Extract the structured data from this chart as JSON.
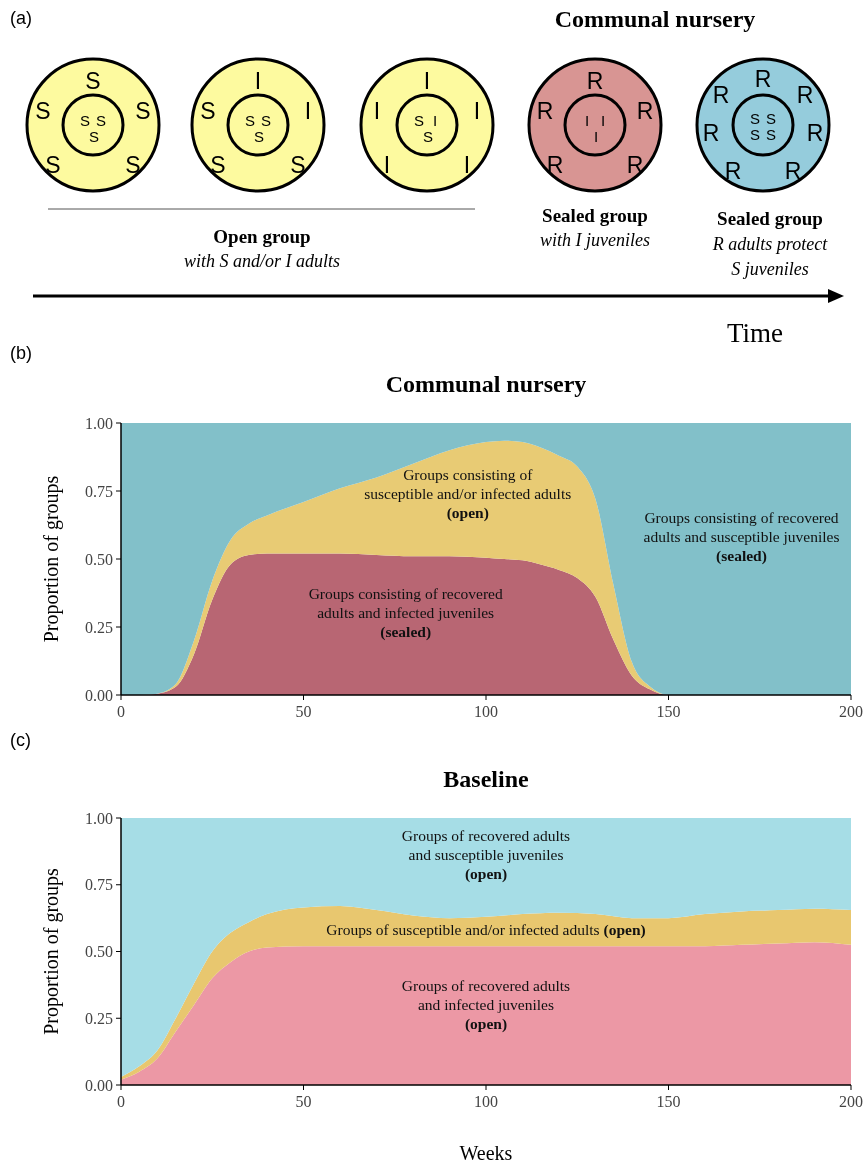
{
  "chart_data": [
    {
      "type": "other",
      "title": "Communal nursery",
      "colors": [
        "#fdfa9f",
        "#fdfa9f",
        "#fdfa9f",
        "#d89593",
        "#95ccdc"
      ],
      "annotations": [
        "(a)",
        "Open group",
        "with S and/or I adults",
        "Sealed group",
        "with I juveniles",
        "Sealed group",
        "R adults protect",
        "S juveniles",
        "Time",
        "S",
        "S",
        "S",
        "S",
        "S",
        "S",
        "S",
        "S",
        "I",
        "S",
        "I",
        "S",
        "S",
        "S",
        "S",
        "S",
        "I",
        "I",
        "I",
        "I",
        "I",
        "S",
        "I",
        "S",
        "R",
        "R",
        "R",
        "R",
        "R",
        "I",
        "I",
        "I",
        "R",
        "R",
        "R",
        "R",
        "R",
        "R",
        "R",
        "S",
        "S",
        "S",
        "S"
      ]
    },
    {
      "type": "area",
      "stacked": true,
      "title": "Communal nursery",
      "ylabel": "Proportion of groups",
      "annotations": [
        "(b)"
      ],
      "x": [
        0,
        5,
        10,
        15,
        20,
        25,
        30,
        35,
        40,
        50,
        60,
        70,
        80,
        90,
        100,
        105,
        110,
        115,
        120,
        125,
        130,
        135,
        140,
        145,
        150,
        175,
        200
      ],
      "xlim": [
        0,
        200
      ],
      "xticks": [
        0,
        50,
        100,
        150,
        200
      ],
      "ylim": [
        0,
        1
      ],
      "yticks": [
        {
          "value": 0,
          "label": "0.00"
        },
        {
          "value": 0.25,
          "label": "0.25"
        },
        {
          "value": 0.5,
          "label": "0.50"
        },
        {
          "value": 0.75,
          "label": "0.75"
        },
        {
          "value": 1,
          "label": "1.00"
        }
      ],
      "legend": false,
      "grid": false,
      "series": [
        {
          "name": "Groups consisting of recovered\nadults and infected juveniles\n(sealed)",
          "color": "#b86673",
          "values": [
            0,
            0,
            0.005,
            0.03,
            0.15,
            0.35,
            0.48,
            0.515,
            0.52,
            0.52,
            0.52,
            0.515,
            0.51,
            0.51,
            0.505,
            0.5,
            0.495,
            0.48,
            0.46,
            0.43,
            0.36,
            0.2,
            0.07,
            0.02,
            0,
            0,
            0
          ]
        },
        {
          "name": "Groups consisting of\nsusceptible and/or infected adults\n(open)",
          "color": "#e8cb74",
          "values": [
            0,
            0,
            0,
            0.01,
            0.05,
            0.07,
            0.09,
            0.115,
            0.14,
            0.19,
            0.24,
            0.285,
            0.34,
            0.39,
            0.425,
            0.435,
            0.435,
            0.43,
            0.42,
            0.41,
            0.36,
            0.2,
            0.05,
            0.01,
            0,
            0,
            0
          ]
        },
        {
          "name": "Groups consisting of recovered\nadults and susceptible juveniles\n(sealed)",
          "color": "#82c0c9",
          "values": [
            1,
            1,
            0.995,
            0.96,
            0.8,
            0.58,
            0.43,
            0.37,
            0.34,
            0.29,
            0.24,
            0.2,
            0.15,
            0.1,
            0.07,
            0.065,
            0.07,
            0.09,
            0.12,
            0.16,
            0.28,
            0.6,
            0.88,
            0.97,
            1,
            1,
            1
          ]
        }
      ]
    },
    {
      "type": "area",
      "stacked": true,
      "title": "Baseline",
      "xlabel": "Weeks",
      "ylabel": "Proportion of groups",
      "annotations": [
        "(c)"
      ],
      "x": [
        0,
        5,
        10,
        15,
        20,
        25,
        30,
        35,
        40,
        50,
        60,
        70,
        80,
        90,
        100,
        110,
        120,
        130,
        140,
        150,
        160,
        170,
        180,
        190,
        200
      ],
      "xlim": [
        0,
        200
      ],
      "xticks": [
        0,
        50,
        100,
        150,
        200
      ],
      "ylim": [
        0,
        1
      ],
      "yticks": [
        {
          "value": 0,
          "label": "0.00"
        },
        {
          "value": 0.25,
          "label": "0.25"
        },
        {
          "value": 0.5,
          "label": "0.50"
        },
        {
          "value": 0.75,
          "label": "0.75"
        },
        {
          "value": 1,
          "label": "1.00"
        }
      ],
      "legend": false,
      "grid": false,
      "series": [
        {
          "name": "Groups of recovered adults\nand infected juveniles\n(open)",
          "color": "#ec98a5",
          "values": [
            0.02,
            0.05,
            0.1,
            0.2,
            0.3,
            0.4,
            0.46,
            0.5,
            0.515,
            0.52,
            0.52,
            0.52,
            0.52,
            0.52,
            0.52,
            0.52,
            0.52,
            0.52,
            0.52,
            0.52,
            0.52,
            0.525,
            0.53,
            0.535,
            0.525
          ]
        },
        {
          "name": "Groups of susceptible and/or infected adults (open)",
          "color": "#e8c76f",
          "values": [
            0.01,
            0.02,
            0.03,
            0.05,
            0.08,
            0.1,
            0.11,
            0.11,
            0.125,
            0.145,
            0.15,
            0.135,
            0.115,
            0.105,
            0.11,
            0.12,
            0.125,
            0.12,
            0.105,
            0.105,
            0.12,
            0.125,
            0.125,
            0.125,
            0.13
          ]
        },
        {
          "name": "Groups of recovered adults\nand susceptible juveniles\n(open)",
          "color": "#a6dde6",
          "values": [
            0.97,
            0.93,
            0.87,
            0.75,
            0.62,
            0.5,
            0.43,
            0.39,
            0.36,
            0.335,
            0.33,
            0.345,
            0.365,
            0.375,
            0.37,
            0.36,
            0.355,
            0.36,
            0.375,
            0.375,
            0.36,
            0.35,
            0.345,
            0.34,
            0.345
          ]
        }
      ]
    }
  ]
}
